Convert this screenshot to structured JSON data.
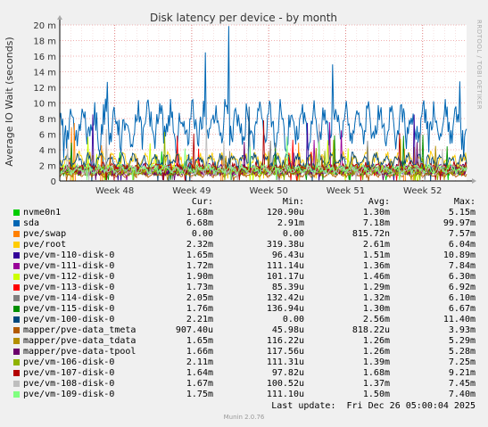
{
  "chart_data": {
    "type": "line",
    "title": "Disk latency per device - by month",
    "ylabel": "Average IO Wait (seconds)",
    "ylim": [
      0,
      0.02
    ],
    "y_ticks": [
      {
        "value": 0,
        "label": "0"
      },
      {
        "value": 0.002,
        "label": "2 m"
      },
      {
        "value": 0.004,
        "label": "4 m"
      },
      {
        "value": 0.006,
        "label": "6 m"
      },
      {
        "value": 0.008,
        "label": "8 m"
      },
      {
        "value": 0.01,
        "label": "10 m"
      },
      {
        "value": 0.012,
        "label": "12 m"
      },
      {
        "value": 0.014,
        "label": "14 m"
      },
      {
        "value": 0.016,
        "label": "16 m"
      },
      {
        "value": 0.018,
        "label": "18 m"
      },
      {
        "value": 0.02,
        "label": "20 m"
      }
    ],
    "x_range": [
      "2025-11-19",
      "2025-12-26"
    ],
    "x_ticks": [
      {
        "label": "Week 48",
        "date": "2025-11-24"
      },
      {
        "label": "Week 49",
        "date": "2025-12-01"
      },
      {
        "label": "Week 50",
        "date": "2025-12-08"
      },
      {
        "label": "Week 51",
        "date": "2025-12-15"
      },
      {
        "label": "Week 52",
        "date": "2025-12-22"
      }
    ],
    "grid": true,
    "legend_placement": "bottom",
    "columns": [
      "Cur:",
      "Min:",
      "Avg:",
      "Max:"
    ],
    "series": [
      {
        "name": "nvme0n1",
        "color": "#00cc00",
        "cur": "1.68m",
        "min": "120.90u",
        "avg": "1.30m",
        "max": "5.15m"
      },
      {
        "name": "sda",
        "color": "#0066b3",
        "cur": "6.68m",
        "min": "2.91m",
        "avg": "7.18m",
        "max": "99.97m"
      },
      {
        "name": "pve/swap",
        "color": "#ff8000",
        "cur": "0.00",
        "min": "0.00",
        "avg": "815.72n",
        "max": "7.57m"
      },
      {
        "name": "pve/root",
        "color": "#ffcc00",
        "cur": "2.32m",
        "min": "319.38u",
        "avg": "2.61m",
        "max": "6.04m"
      },
      {
        "name": "pve/vm-110-disk-0",
        "color": "#330099",
        "cur": "1.65m",
        "min": "96.43u",
        "avg": "1.51m",
        "max": "10.89m"
      },
      {
        "name": "pve/vm-111-disk-0",
        "color": "#990099",
        "cur": "1.72m",
        "min": "111.14u",
        "avg": "1.36m",
        "max": "7.84m"
      },
      {
        "name": "pve/vm-112-disk-0",
        "color": "#ccff00",
        "cur": "1.90m",
        "min": "101.17u",
        "avg": "1.46m",
        "max": "6.30m"
      },
      {
        "name": "pve/vm-113-disk-0",
        "color": "#ff0000",
        "cur": "1.73m",
        "min": "85.39u",
        "avg": "1.29m",
        "max": "6.92m"
      },
      {
        "name": "pve/vm-114-disk-0",
        "color": "#808080",
        "cur": "2.05m",
        "min": "132.42u",
        "avg": "1.32m",
        "max": "6.10m"
      },
      {
        "name": "pve/vm-115-disk-0",
        "color": "#008f00",
        "cur": "1.76m",
        "min": "136.94u",
        "avg": "1.30m",
        "max": "6.67m"
      },
      {
        "name": "pve/vm-100-disk-0",
        "color": "#00487d",
        "cur": "2.21m",
        "min": "0.00",
        "avg": "2.56m",
        "max": "11.40m"
      },
      {
        "name": "mapper/pve-data_tmeta",
        "color": "#b35a00",
        "cur": "907.40u",
        "min": "45.98u",
        "avg": "818.22u",
        "max": "3.93m"
      },
      {
        "name": "mapper/pve-data_tdata",
        "color": "#b38f00",
        "cur": "1.65m",
        "min": "116.22u",
        "avg": "1.26m",
        "max": "5.29m"
      },
      {
        "name": "mapper/pve-data-tpool",
        "color": "#6b006b",
        "cur": "1.66m",
        "min": "117.56u",
        "avg": "1.26m",
        "max": "5.28m"
      },
      {
        "name": "pve/vm-106-disk-0",
        "color": "#8fb300",
        "cur": "2.11m",
        "min": "111.31u",
        "avg": "1.39m",
        "max": "7.25m"
      },
      {
        "name": "pve/vm-107-disk-0",
        "color": "#b30000",
        "cur": "1.64m",
        "min": "97.82u",
        "avg": "1.68m",
        "max": "9.21m"
      },
      {
        "name": "pve/vm-108-disk-0",
        "color": "#bebebe",
        "cur": "1.67m",
        "min": "100.52u",
        "avg": "1.37m",
        "max": "7.45m"
      },
      {
        "name": "pve/vm-109-disk-0",
        "color": "#80ff80",
        "cur": "1.75m",
        "min": "111.10u",
        "avg": "1.50m",
        "max": "7.40m"
      }
    ],
    "last_update": "Last update:  Fri Dec 26 05:00:04 2025",
    "watermark": "RRDTOOL / TOBI OETIKER",
    "version": "Munin 2.0.76"
  }
}
